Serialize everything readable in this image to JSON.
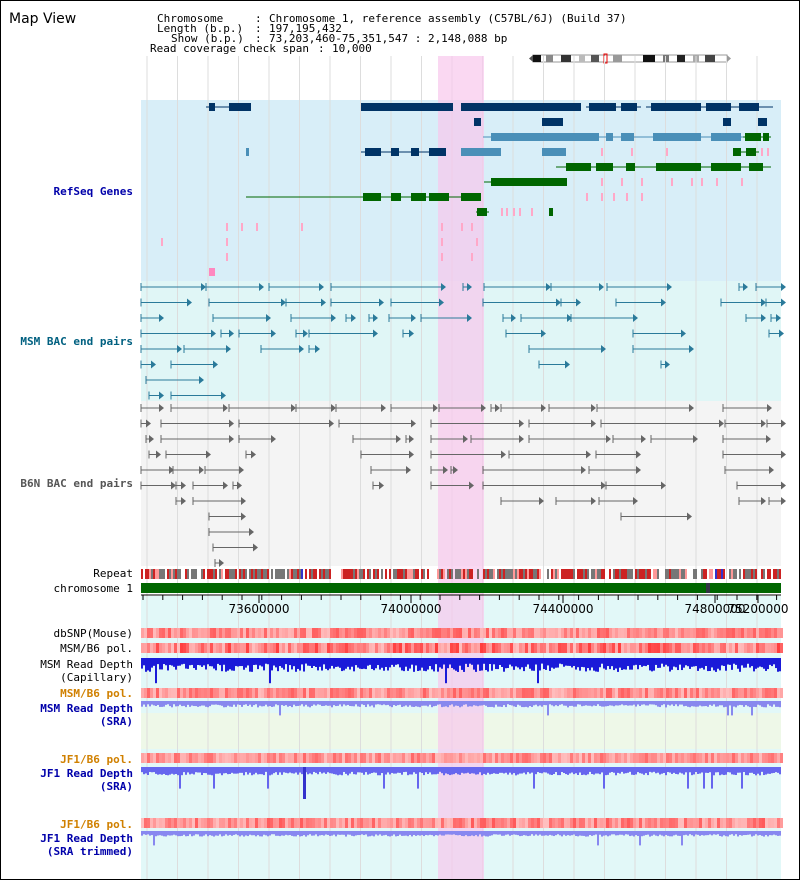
{
  "title": "Map View",
  "header": {
    "chrom_key": "Chromosome",
    "chrom_val": "Chromosome 1, reference assembly (C57BL/6J) (Build 37)",
    "length_key": "Length (b.p.)",
    "length_val": "197,195,432",
    "show_key": "Show (b.p.)",
    "show_val": "73,203,460-75,351,547 : 2,148,088 bp",
    "span_key": "Read coverage check span",
    "span_val": "10,000"
  },
  "tracks": {
    "refseq": "RefSeq Genes",
    "msm_bac": "MSM BAC end pairs",
    "b6n_bac": "B6N BAC end pairs",
    "repeat": "Repeat",
    "chromosome": "chromosome 1",
    "dbsnp": "dbSNP(Mouse)",
    "msm_b6_pol_1": "MSM/B6 pol.",
    "msm_depth_cap_1": "MSM Read Depth",
    "msm_depth_cap_2": "(Capillary)",
    "msm_b6_pol_2": "MSM/B6 pol.",
    "msm_depth_sra_1": "MSM Read Depth",
    "msm_depth_sra_2": "(SRA)",
    "jf1_b6_pol_1": "JF1/B6 pol.",
    "jf1_depth_sra_1": "JF1 Read Depth",
    "jf1_depth_sra_2": "(SRA)",
    "jf1_b6_pol_2": "JF1/B6 pol.",
    "jf1_trim_1": "JF1 Read Depth",
    "jf1_trim_2": "(SRA trimmed)"
  },
  "axis": {
    "ticks": [
      "73600000",
      "74000000",
      "74400000",
      "74800000",
      "75200000"
    ]
  },
  "colors": {
    "refseq_label": "#0000aa",
    "msm_label": "#006080",
    "b6n_label": "#555555",
    "pol_label": "#d08000",
    "depth_label": "#0000aa",
    "highlight": "#f8d8f0",
    "gene_dark": "#003366",
    "gene_mid": "#4a8fb8",
    "gene_green": "#006600",
    "bac_msm": "#2a7a9a",
    "bac_b6n": "#666666",
    "chrom_bar": "#006600"
  }
}
